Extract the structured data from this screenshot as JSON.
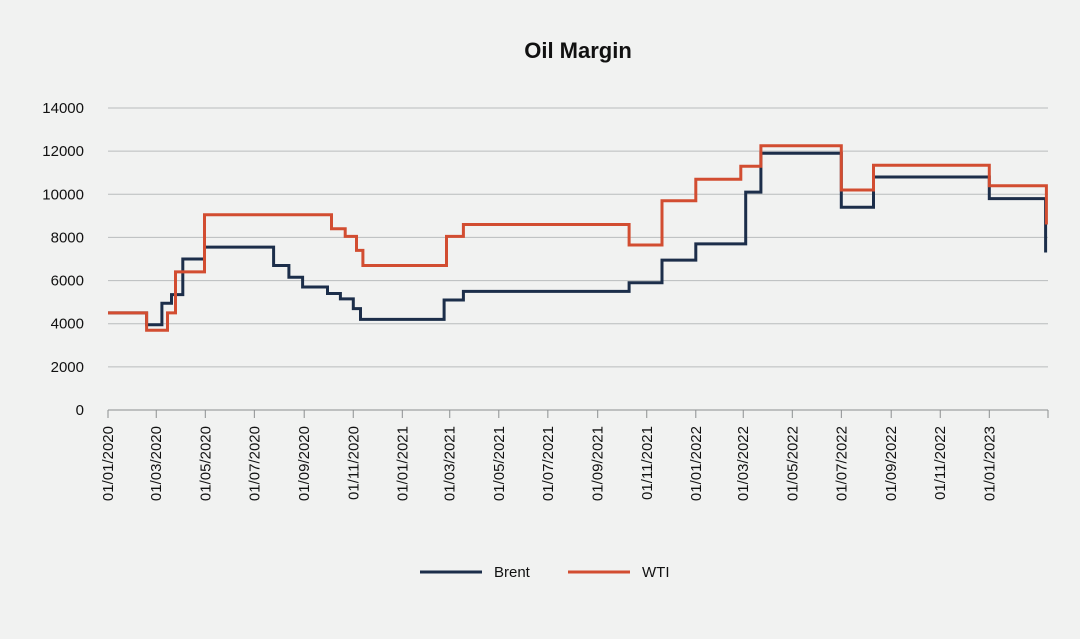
{
  "chart_data": {
    "type": "line",
    "title": "Oil Margin",
    "xlabel": "",
    "ylabel": "",
    "ylim": [
      0,
      14000
    ],
    "yticks": [
      "0",
      "2000",
      "4000",
      "6000",
      "8000",
      "10000",
      "12000",
      "14000"
    ],
    "xlim": [
      "2020-01-01",
      "2023-03-15"
    ],
    "xticks": [
      {
        "date": "2020-01-01",
        "label": "01/01/2020"
      },
      {
        "date": "2020-03-01",
        "label": "01/03/2020"
      },
      {
        "date": "2020-05-01",
        "label": "01/05/2020"
      },
      {
        "date": "2020-07-01",
        "label": "01/07/2020"
      },
      {
        "date": "2020-09-01",
        "label": "01/09/2020"
      },
      {
        "date": "2020-11-01",
        "label": "01/11/2020"
      },
      {
        "date": "2021-01-01",
        "label": "01/01/2021"
      },
      {
        "date": "2021-03-01",
        "label": "01/03/2021"
      },
      {
        "date": "2021-05-01",
        "label": "01/05/2021"
      },
      {
        "date": "2021-07-01",
        "label": "01/07/2021"
      },
      {
        "date": "2021-09-01",
        "label": "01/09/2021"
      },
      {
        "date": "2021-11-01",
        "label": "01/11/2021"
      },
      {
        "date": "2022-01-01",
        "label": "01/01/2022"
      },
      {
        "date": "2022-03-01",
        "label": "01/03/2022"
      },
      {
        "date": "2022-05-01",
        "label": "01/05/2022"
      },
      {
        "date": "2022-07-01",
        "label": "01/07/2022"
      },
      {
        "date": "2022-09-01",
        "label": "01/09/2022"
      },
      {
        "date": "2022-11-01",
        "label": "01/11/2022"
      },
      {
        "date": "2023-01-01",
        "label": "01/01/2023"
      }
    ],
    "grid": true,
    "legend_position": "bottom",
    "series": [
      {
        "name": "Brent",
        "color": "#1c2e4a",
        "step": true,
        "points": [
          [
            "2020-01-01",
            4500
          ],
          [
            "2020-02-18",
            3950
          ],
          [
            "2020-03-08",
            4950
          ],
          [
            "2020-03-20",
            5350
          ],
          [
            "2020-04-03",
            7000
          ],
          [
            "2020-04-30",
            7550
          ],
          [
            "2020-07-25",
            6700
          ],
          [
            "2020-08-13",
            6150
          ],
          [
            "2020-08-30",
            5700
          ],
          [
            "2020-09-30",
            5400
          ],
          [
            "2020-10-16",
            5150
          ],
          [
            "2020-11-01",
            4700
          ],
          [
            "2020-11-10",
            4200
          ],
          [
            "2021-02-22",
            5100
          ],
          [
            "2021-03-18",
            5500
          ],
          [
            "2021-10-10",
            5900
          ],
          [
            "2021-11-20",
            6950
          ],
          [
            "2022-01-01",
            7700
          ],
          [
            "2022-03-04",
            10100
          ],
          [
            "2022-03-23",
            11900
          ],
          [
            "2022-07-01",
            9400
          ],
          [
            "2022-08-10",
            10800
          ],
          [
            "2023-01-01",
            9800
          ],
          [
            "2023-03-12",
            7300
          ]
        ]
      },
      {
        "name": "WTI",
        "color": "#d24d31",
        "step": true,
        "points": [
          [
            "2020-01-01",
            4500
          ],
          [
            "2020-02-18",
            3700
          ],
          [
            "2020-03-15",
            4500
          ],
          [
            "2020-03-25",
            6400
          ],
          [
            "2020-04-30",
            9050
          ],
          [
            "2020-10-05",
            8400
          ],
          [
            "2020-10-22",
            8050
          ],
          [
            "2020-11-05",
            7400
          ],
          [
            "2020-11-13",
            6700
          ],
          [
            "2021-02-25",
            8050
          ],
          [
            "2021-03-18",
            8600
          ],
          [
            "2021-10-10",
            7650
          ],
          [
            "2021-11-20",
            9700
          ],
          [
            "2022-01-01",
            10700
          ],
          [
            "2022-02-26",
            11300
          ],
          [
            "2022-03-23",
            12250
          ],
          [
            "2022-07-01",
            10200
          ],
          [
            "2022-08-10",
            11350
          ],
          [
            "2023-01-01",
            10400
          ],
          [
            "2023-03-13",
            8600
          ]
        ]
      }
    ]
  }
}
